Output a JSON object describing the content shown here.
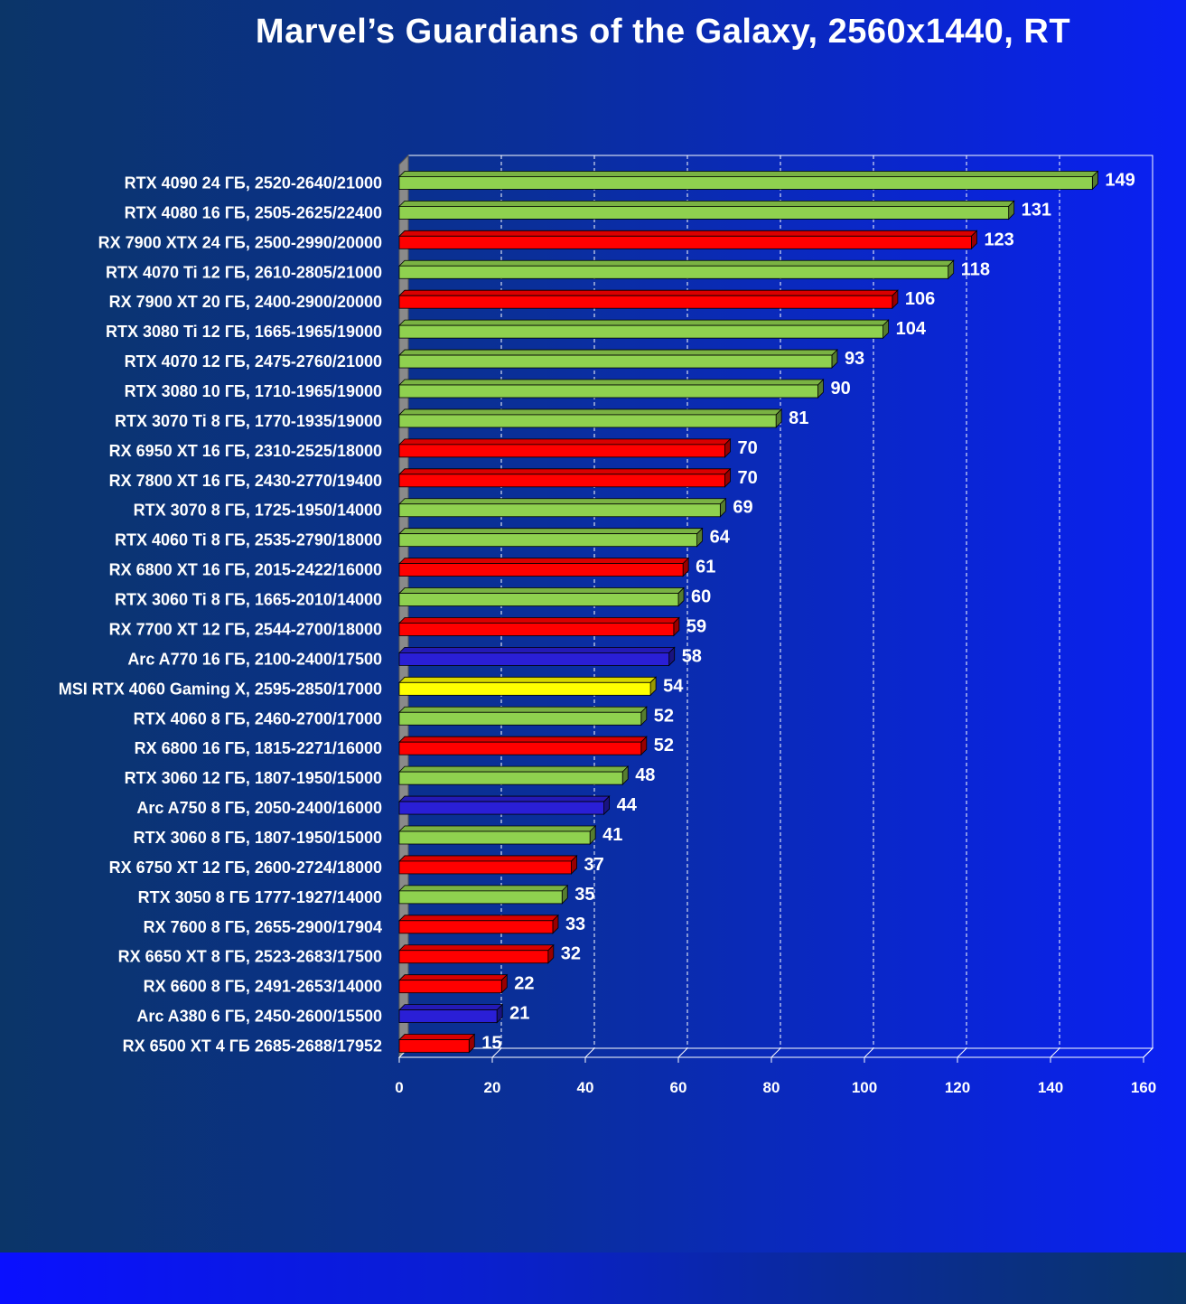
{
  "colors": {
    "nvidia": "#8fd14f",
    "amd": "#ff0000",
    "intel": "#2a1fd6",
    "highlight": "#ffff00"
  },
  "chart_data": {
    "type": "bar",
    "orientation": "horizontal",
    "title": "Marvel’s Guardians of the Galaxy, 2560x1440, RT",
    "xlabel": "",
    "ylabel": "",
    "xlim": [
      0,
      160
    ],
    "xticks": [
      0,
      20,
      40,
      60,
      80,
      100,
      120,
      140,
      160
    ],
    "grid": "vertical dashed",
    "legend": "none",
    "categories": [
      "RTX 4090 24 ГБ, 2520-2640/21000",
      "RTX 4080 16 ГБ, 2505-2625/22400",
      "RX 7900 XTX 24 ГБ, 2500-2990/20000",
      "RTX 4070 Ti 12 ГБ, 2610-2805/21000",
      "RX 7900 XT 20 ГБ, 2400-2900/20000",
      "RTX 3080 Ti 12 ГБ, 1665-1965/19000",
      "RTX 4070 12 ГБ, 2475-2760/21000",
      "RTX 3080 10 ГБ, 1710-1965/19000",
      "RTX 3070 Ti 8 ГБ, 1770-1935/19000",
      "RX 6950 XT 16 ГБ, 2310-2525/18000",
      "RX 7800 XT 16 ГБ, 2430-2770/19400",
      "RTX 3070 8 ГБ, 1725-1950/14000",
      "RTX 4060 Ti 8 ГБ, 2535-2790/18000",
      "RX 6800 XT 16 ГБ, 2015-2422/16000",
      "RTX 3060 Ti 8 ГБ, 1665-2010/14000",
      "RX 7700 XT 12 ГБ, 2544-2700/18000",
      "Arc A770 16 ГБ, 2100-2400/17500",
      "MSI RTX 4060 Gaming X, 2595-2850/17000",
      "RTX 4060 8 ГБ, 2460-2700/17000",
      "RX 6800 16 ГБ, 1815-2271/16000",
      "RTX 3060 12 ГБ, 1807-1950/15000",
      "Arc A750 8 ГБ, 2050-2400/16000",
      "RTX 3060 8 ГБ, 1807-1950/15000",
      "RX 6750 XT 12 ГБ, 2600-2724/18000",
      "RTX 3050 8 ГБ 1777-1927/14000",
      "RX 7600 8 ГБ, 2655-2900/17904",
      "RX 6650 XT 8 ГБ, 2523-2683/17500",
      "RX 6600 8 ГБ, 2491-2653/14000",
      "Arc A380 6 ГБ, 2450-2600/15500",
      "RX 6500 XT 4 ГБ 2685-2688/17952"
    ],
    "values": [
      149,
      131,
      123,
      118,
      106,
      104,
      93,
      90,
      81,
      70,
      70,
      69,
      64,
      61,
      60,
      59,
      58,
      54,
      52,
      52,
      48,
      44,
      41,
      37,
      35,
      33,
      32,
      22,
      21,
      15
    ],
    "bar_colors": [
      "#8fd14f",
      "#8fd14f",
      "#ff0000",
      "#8fd14f",
      "#ff0000",
      "#8fd14f",
      "#8fd14f",
      "#8fd14f",
      "#8fd14f",
      "#ff0000",
      "#ff0000",
      "#8fd14f",
      "#8fd14f",
      "#ff0000",
      "#8fd14f",
      "#ff0000",
      "#2a1fd6",
      "#ffff00",
      "#8fd14f",
      "#ff0000",
      "#8fd14f",
      "#2a1fd6",
      "#8fd14f",
      "#ff0000",
      "#8fd14f",
      "#ff0000",
      "#ff0000",
      "#ff0000",
      "#2a1fd6",
      "#ff0000"
    ]
  }
}
